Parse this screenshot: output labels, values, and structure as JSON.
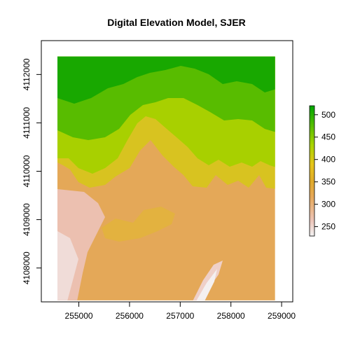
{
  "chart_data": {
    "type": "heatmap",
    "title": "Digital Elevation Model, SJER",
    "xlabel": "",
    "ylabel": "",
    "x_ticks": [
      "255000",
      "256000",
      "257000",
      "258000",
      "259000"
    ],
    "y_ticks": [
      "4108000",
      "4109000",
      "4110000",
      "4111000",
      "4112000"
    ],
    "x_tick_values": [
      255000,
      256000,
      257000,
      258000,
      259000
    ],
    "y_tick_values": [
      4108000,
      4109000,
      4110000,
      4111000,
      4112000
    ],
    "xlim": [
      254260,
      259220
    ],
    "ylim": [
      4107300,
      4112700
    ],
    "raster_extent": {
      "xmin": 254570,
      "xmax": 258870,
      "ymin": 4107330,
      "ymax": 4112370
    },
    "legend": {
      "placement": "right",
      "ticks": [
        "250",
        "300",
        "350",
        "400",
        "450",
        "500"
      ],
      "tick_values": [
        250,
        300,
        350,
        400,
        450,
        500
      ],
      "range": [
        229,
        520
      ]
    },
    "colors": {
      "low": "#f2f2f2",
      "mid_low": "#e6a85a",
      "mid": "#e6c51a",
      "mid_high": "#a8d400",
      "high": "#00a600"
    }
  }
}
